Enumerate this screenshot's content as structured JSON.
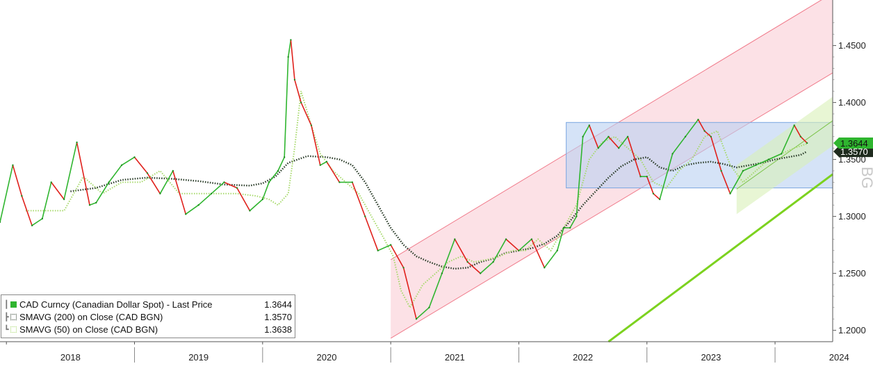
{
  "chart_data": {
    "type": "line",
    "ylim": [
      1.19,
      1.49
    ],
    "y_ticks": [
      1.2,
      1.25,
      1.3,
      1.35,
      1.4,
      1.45
    ],
    "y_tick_labels": [
      "1.2000",
      "1.2500",
      "1.3000",
      "1.3500",
      "1.4000",
      "1.4500"
    ],
    "x_range": [
      2017.95,
      2024.45
    ],
    "x_ticks": [
      2018,
      2019,
      2020,
      2021,
      2022,
      2023,
      2024
    ],
    "x_tick_labels": [
      "2018",
      "2019",
      "2020",
      "2021",
      "2022",
      "2023",
      "2024"
    ],
    "last_price_badge": "1.3644",
    "sma200_badge": "1.3570",
    "watermark": "BG",
    "legend": [
      {
        "name": "CAD Curncy (Canadian Dollar Spot) - Last Price",
        "value": "1.3644",
        "color": "#2fb52f"
      },
      {
        "name": "SMAVG (200)  on Close (CAD BGN)",
        "value": "1.3570",
        "color": "#2b3d2a"
      },
      {
        "name": "SMAVG (50)  on Close (CAD BGN)",
        "value": "1.3638",
        "color": "#a6d96a"
      }
    ],
    "series": [
      {
        "name": "CAD Curncy (Canadian Dollar Spot) - Last Price",
        "color": "#2fb52f",
        "x": [
          2017.95,
          2018.05,
          2018.12,
          2018.2,
          2018.28,
          2018.35,
          2018.45,
          2018.55,
          2018.65,
          2018.7,
          2018.8,
          2018.9,
          2019.0,
          2019.1,
          2019.2,
          2019.3,
          2019.4,
          2019.5,
          2019.6,
          2019.7,
          2019.8,
          2019.9,
          2020.0,
          2020.05,
          2020.12,
          2020.17,
          2020.2,
          2020.22,
          2020.25,
          2020.3,
          2020.38,
          2020.45,
          2020.5,
          2020.6,
          2020.7,
          2020.8,
          2020.9,
          2021.0,
          2021.1,
          2021.2,
          2021.3,
          2021.4,
          2021.5,
          2021.6,
          2021.7,
          2021.8,
          2021.9,
          2022.0,
          2022.1,
          2022.2,
          2022.3,
          2022.35,
          2022.4,
          2022.45,
          2022.5,
          2022.55,
          2022.62,
          2022.7,
          2022.78,
          2022.85,
          2022.95,
          2023.0,
          2023.05,
          2023.1,
          2023.2,
          2023.3,
          2023.4,
          2023.45,
          2023.5,
          2023.58,
          2023.65,
          2023.75,
          2023.85,
          2023.95,
          2024.05,
          2024.15,
          2024.2,
          2024.25
        ],
        "values": [
          1.295,
          1.345,
          1.318,
          1.292,
          1.298,
          1.33,
          1.315,
          1.365,
          1.31,
          1.312,
          1.33,
          1.345,
          1.352,
          1.338,
          1.32,
          1.34,
          1.302,
          1.31,
          1.32,
          1.33,
          1.325,
          1.305,
          1.315,
          1.33,
          1.34,
          1.352,
          1.44,
          1.455,
          1.42,
          1.4,
          1.38,
          1.345,
          1.348,
          1.33,
          1.33,
          1.3,
          1.27,
          1.275,
          1.255,
          1.21,
          1.22,
          1.25,
          1.28,
          1.26,
          1.25,
          1.26,
          1.28,
          1.27,
          1.28,
          1.255,
          1.27,
          1.29,
          1.29,
          1.3,
          1.37,
          1.38,
          1.36,
          1.37,
          1.36,
          1.37,
          1.335,
          1.335,
          1.32,
          1.315,
          1.355,
          1.37,
          1.385,
          1.375,
          1.37,
          1.34,
          1.32,
          1.34,
          1.345,
          1.35,
          1.355,
          1.38,
          1.37,
          1.3644
        ]
      },
      {
        "name": "SMAVG (200)  on Close (CAD BGN)",
        "color": "#2b3d2a",
        "x": [
          2018.5,
          2018.7,
          2018.9,
          2019.1,
          2019.3,
          2019.5,
          2019.7,
          2019.9,
          2020.0,
          2020.1,
          2020.2,
          2020.35,
          2020.5,
          2020.6,
          2020.7,
          2020.8,
          2020.9,
          2021.0,
          2021.1,
          2021.2,
          2021.3,
          2021.4,
          2021.5,
          2021.6,
          2021.7,
          2021.8,
          2021.9,
          2022.0,
          2022.1,
          2022.2,
          2022.3,
          2022.4,
          2022.5,
          2022.6,
          2022.7,
          2022.8,
          2022.9,
          2023.0,
          2023.1,
          2023.2,
          2023.3,
          2023.4,
          2023.5,
          2023.6,
          2023.7,
          2023.8,
          2023.9,
          2024.0,
          2024.1,
          2024.2,
          2024.25
        ],
        "values": [
          1.322,
          1.325,
          1.332,
          1.334,
          1.333,
          1.331,
          1.328,
          1.327,
          1.329,
          1.335,
          1.347,
          1.353,
          1.352,
          1.35,
          1.345,
          1.33,
          1.31,
          1.29,
          1.275,
          1.265,
          1.26,
          1.256,
          1.254,
          1.255,
          1.26,
          1.263,
          1.268,
          1.27,
          1.272,
          1.276,
          1.283,
          1.296,
          1.31,
          1.322,
          1.334,
          1.344,
          1.35,
          1.352,
          1.343,
          1.34,
          1.345,
          1.347,
          1.348,
          1.346,
          1.343,
          1.345,
          1.347,
          1.35,
          1.352,
          1.354,
          1.357
        ]
      },
      {
        "name": "SMAVG (50)  on Close (CAD BGN)",
        "color": "#a6d96a",
        "x": [
          2018.15,
          2018.3,
          2018.45,
          2018.6,
          2018.75,
          2018.9,
          2019.05,
          2019.2,
          2019.35,
          2019.5,
          2019.65,
          2019.8,
          2019.95,
          2020.05,
          2020.12,
          2020.2,
          2020.25,
          2020.3,
          2020.38,
          2020.45,
          2020.55,
          2020.65,
          2020.75,
          2020.85,
          2020.95,
          2021.02,
          2021.08,
          2021.15,
          2021.25,
          2021.35,
          2021.45,
          2021.55,
          2021.65,
          2021.75,
          2021.85,
          2021.95,
          2022.05,
          2022.15,
          2022.25,
          2022.35,
          2022.45,
          2022.55,
          2022.65,
          2022.75,
          2022.85,
          2022.95,
          2023.05,
          2023.15,
          2023.25,
          2023.35,
          2023.45,
          2023.55,
          2023.65,
          2023.75,
          2023.85,
          2023.95,
          2024.05,
          2024.15,
          2024.25
        ],
        "values": [
          1.305,
          1.305,
          1.305,
          1.335,
          1.32,
          1.33,
          1.33,
          1.34,
          1.32,
          1.32,
          1.32,
          1.32,
          1.318,
          1.315,
          1.31,
          1.32,
          1.36,
          1.41,
          1.38,
          1.355,
          1.34,
          1.33,
          1.32,
          1.3,
          1.28,
          1.265,
          1.235,
          1.22,
          1.24,
          1.25,
          1.26,
          1.265,
          1.26,
          1.262,
          1.265,
          1.27,
          1.27,
          1.28,
          1.27,
          1.29,
          1.31,
          1.35,
          1.365,
          1.37,
          1.36,
          1.35,
          1.33,
          1.325,
          1.34,
          1.35,
          1.37,
          1.375,
          1.345,
          1.33,
          1.34,
          1.35,
          1.355,
          1.36,
          1.3638
        ]
      }
    ]
  }
}
